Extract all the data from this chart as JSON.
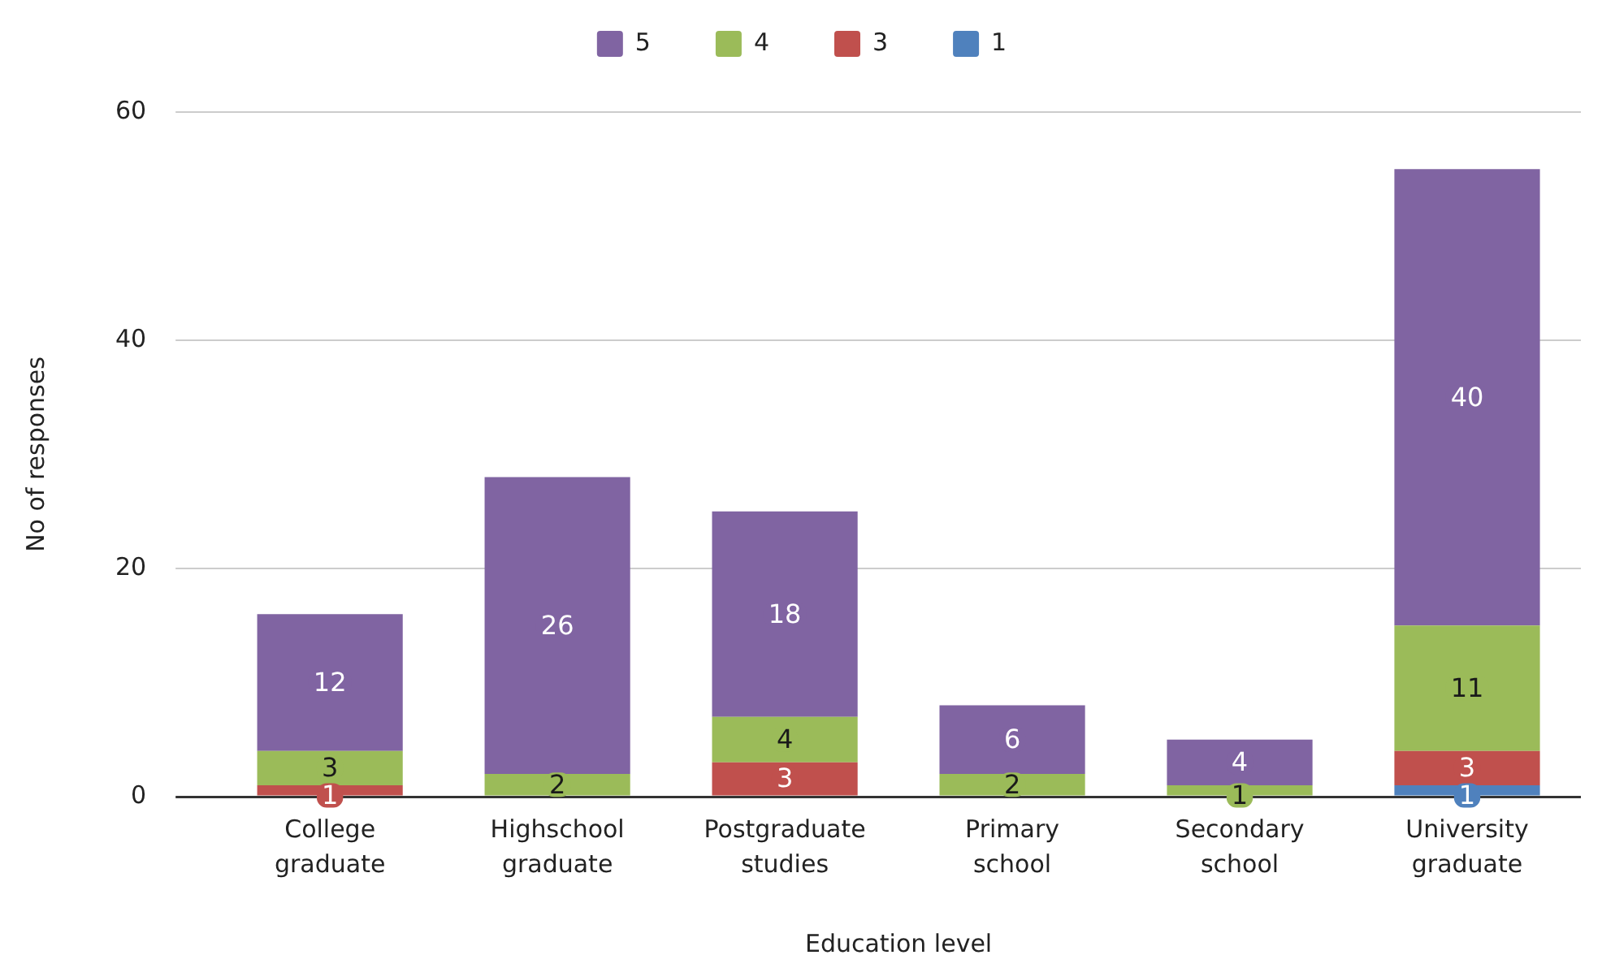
{
  "chart_data": {
    "type": "bar",
    "stacked": true,
    "xlabel": "Education level",
    "ylabel": "No of responses",
    "categories": [
      "College graduate",
      "Highschool graduate",
      "Postgraduate studies",
      "Primary school",
      "Secondary school",
      "University graduate"
    ],
    "series": [
      {
        "name": "1",
        "color": "#4f81bd",
        "values": [
          null,
          null,
          null,
          null,
          null,
          1
        ]
      },
      {
        "name": "3",
        "color": "#c0504d",
        "values": [
          1,
          null,
          3,
          null,
          null,
          3
        ]
      },
      {
        "name": "4",
        "color": "#9bbb59",
        "values": [
          3,
          2,
          4,
          2,
          1,
          11
        ]
      },
      {
        "name": "5",
        "color": "#8064a2",
        "values": [
          12,
          26,
          18,
          6,
          4,
          40
        ]
      }
    ],
    "ylim": [
      0,
      60
    ],
    "yticks": [
      0,
      20,
      40,
      60
    ],
    "grid": "y",
    "legend": "top",
    "data_labels": true
  }
}
